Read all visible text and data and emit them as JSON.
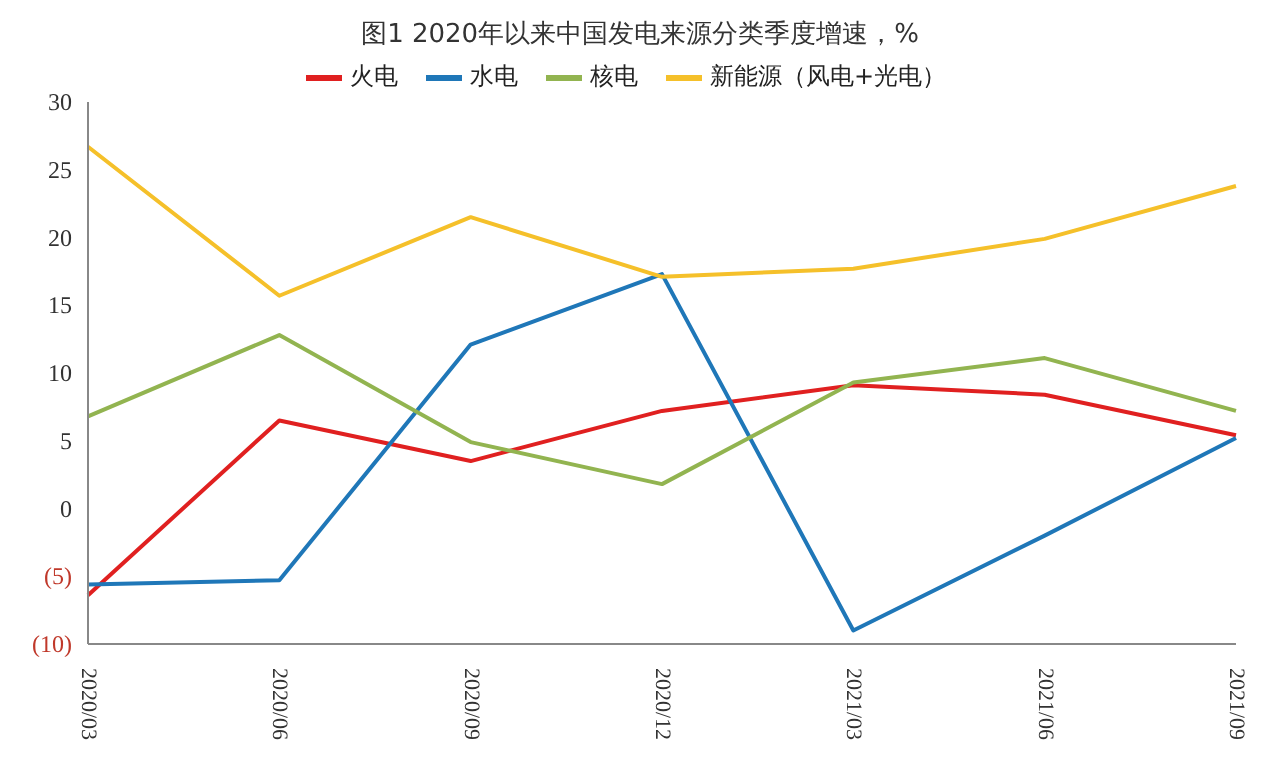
{
  "chart_data": {
    "type": "line",
    "title": "图1 2020年以来中国发电来源分类季度增速，%",
    "categories": [
      "2020/03",
      "2020/06",
      "2020/09",
      "2020/12",
      "2021/03",
      "2021/06",
      "2021/09"
    ],
    "series": [
      {
        "name": "火电",
        "color": "#e02020",
        "values": [
          -6.4,
          6.5,
          3.5,
          7.2,
          9.1,
          8.4,
          5.4
        ]
      },
      {
        "name": "水电",
        "color": "#1f77b8",
        "values": [
          -5.6,
          -5.3,
          12.1,
          17.3,
          -9.0,
          -2.0,
          5.2
        ]
      },
      {
        "name": "核电",
        "color": "#92b450",
        "values": [
          6.8,
          12.8,
          4.9,
          1.8,
          9.3,
          11.1,
          7.2
        ]
      },
      {
        "name": "新能源（风电+光电）",
        "color": "#f5c02a",
        "values": [
          26.7,
          15.7,
          21.5,
          17.1,
          17.7,
          19.9,
          23.8
        ]
      }
    ],
    "ylim": [
      -10,
      30
    ],
    "yticks": [
      {
        "value": -10,
        "label": "(10)"
      },
      {
        "value": -5,
        "label": "(5)"
      },
      0,
      5,
      10,
      15,
      20,
      25,
      30
    ],
    "legend": "top",
    "marker": "none",
    "line_style": "solid"
  }
}
